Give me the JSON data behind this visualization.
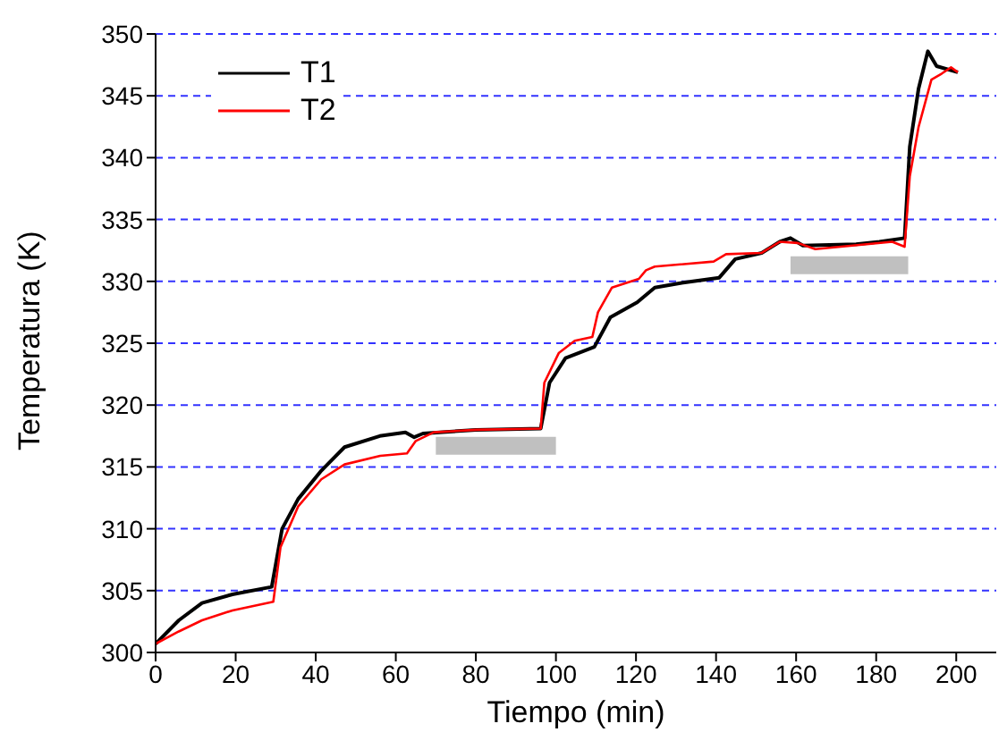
{
  "chart_data": {
    "type": "line",
    "xlabel": "Tiempo (min)",
    "ylabel": "Temperatura (K)",
    "xlim": [
      0,
      210
    ],
    "xticks": [
      0,
      20,
      40,
      60,
      80,
      100,
      120,
      140,
      160,
      180,
      200
    ],
    "ylim": [
      300,
      350
    ],
    "yticks": [
      300,
      305,
      310,
      315,
      320,
      325,
      330,
      335,
      340,
      345,
      350
    ],
    "grid": "y",
    "legend": "top left",
    "line_style": "solid",
    "marker": "none",
    "series": [
      {
        "name": "T1",
        "color": "#000000",
        "x": [
          0,
          5.8,
          11.6,
          19.2,
          29,
          31.6,
          35.6,
          41.4,
          47.2,
          56,
          62.4,
          64.6,
          66.8,
          80,
          96.2,
          98.4,
          102.4,
          109.6,
          113.6,
          120.3,
          124.7,
          131.8,
          140.8,
          144.8,
          151.4,
          155.9,
          158.6,
          161.7,
          175,
          180.8,
          187.1,
          188.4,
          190.6,
          192.9,
          195.1,
          200.4
        ],
        "values": [
          300.7,
          302.6,
          304.0,
          304.7,
          305.3,
          310,
          312.4,
          314.7,
          316.6,
          317.5,
          317.8,
          317.4,
          317.7,
          318,
          318.1,
          321.8,
          323.8,
          324.7,
          327.1,
          328.3,
          329.5,
          329.9,
          330.3,
          331.8,
          332.3,
          333.2,
          333.5,
          332.9,
          333,
          333.2,
          333.5,
          340.9,
          345.6,
          348.6,
          347.4,
          346.9
        ]
      },
      {
        "name": "T2",
        "color": "#ff0000",
        "x": [
          0,
          5.8,
          11.6,
          19.2,
          29.4,
          31.2,
          35.6,
          41.4,
          47.2,
          56.1,
          62.8,
          65,
          69.5,
          80,
          96.2,
          97.1,
          100.7,
          104.7,
          109.1,
          110.5,
          114,
          120.7,
          122.5,
          124.7,
          139.4,
          142.5,
          151.4,
          155.9,
          160.4,
          164.8,
          184,
          187.1,
          188.4,
          190.6,
          193.8,
          196.4,
          198.7,
          200.4
        ],
        "values": [
          300.7,
          301.7,
          302.6,
          303.4,
          304.1,
          308.5,
          311.8,
          314.0,
          315.2,
          315.9,
          316.1,
          317.1,
          317.8,
          318,
          318.1,
          321.8,
          324.2,
          325.2,
          325.5,
          327.5,
          329.5,
          330.2,
          330.9,
          331.2,
          331.6,
          332.2,
          332.3,
          333.2,
          333.1,
          332.6,
          333.2,
          332.8,
          338.5,
          342.5,
          346.3,
          346.8,
          347.3,
          346.9
        ]
      },
      {
        "color": "#c0c0c0",
        "x": [
          70,
          100
        ],
        "values": [
          316.7,
          316.7
        ]
      },
      {
        "color": "#c0c0c0",
        "x": [
          158.6,
          188
        ],
        "values": [
          331.3,
          331.3
        ]
      }
    ]
  }
}
